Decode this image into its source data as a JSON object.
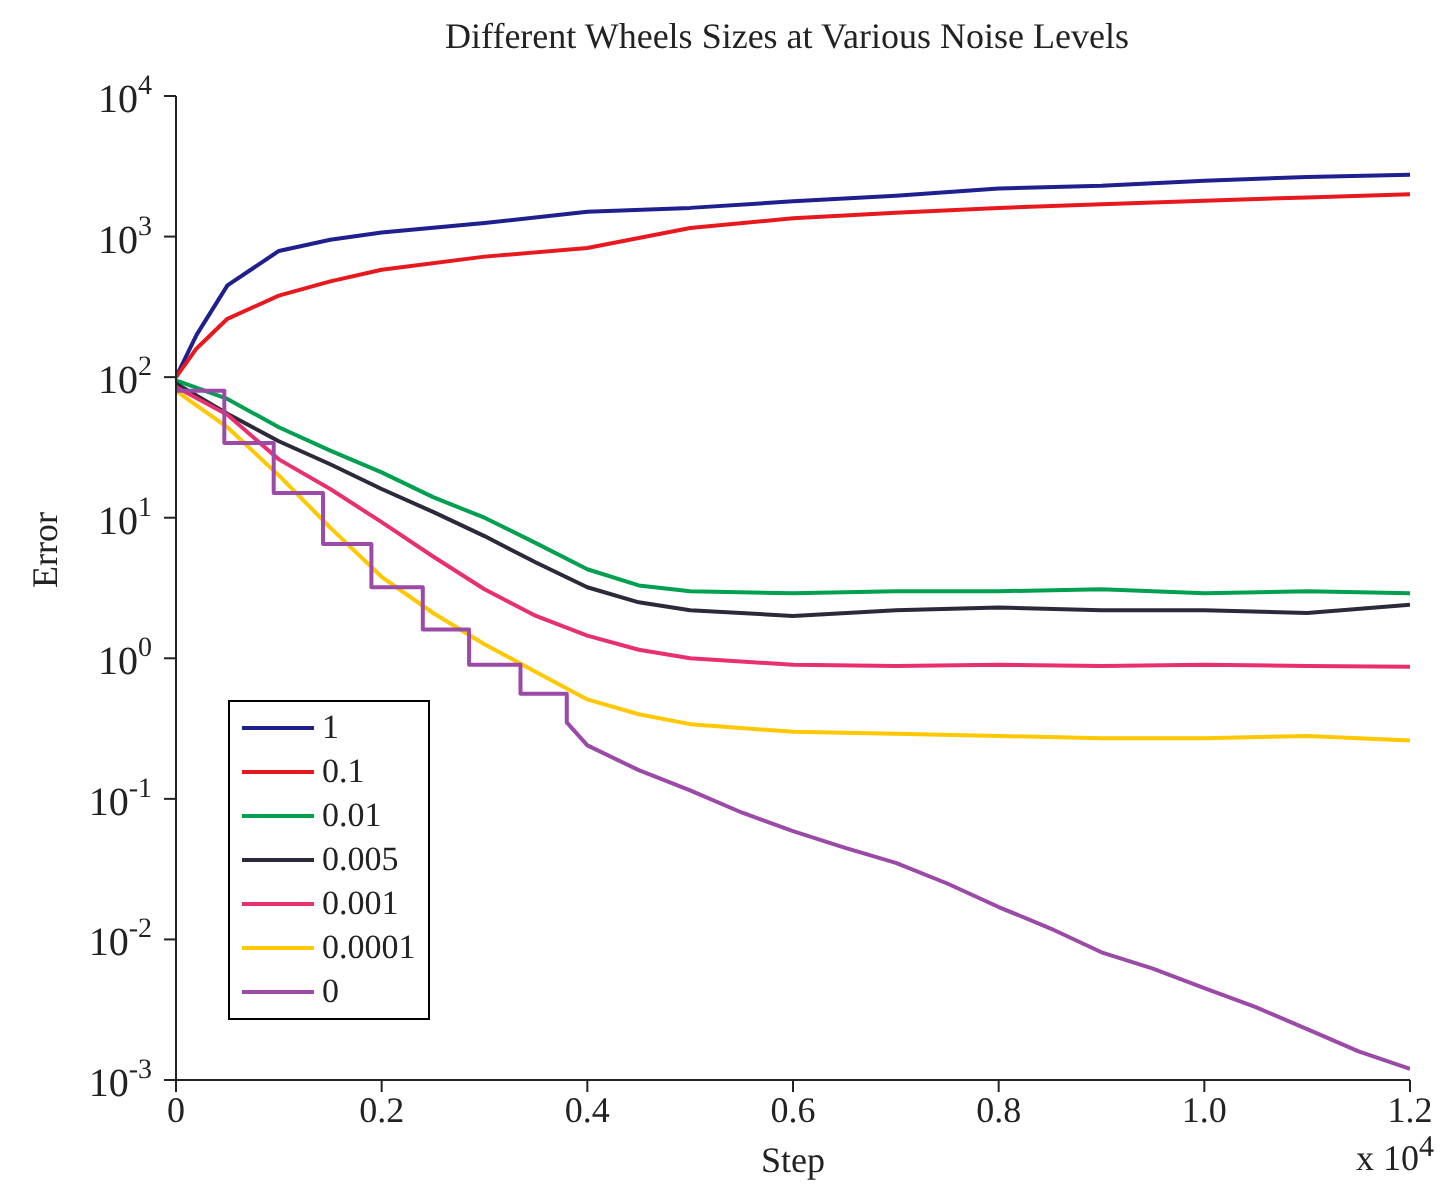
{
  "chart_data": {
    "type": "line",
    "title": "Different Wheels Sizes at Various Noise Levels",
    "xlabel": "Step",
    "ylabel": "Error",
    "annotations": [
      "x 10$^{4}$"
    ],
    "log": "y",
    "grid": false,
    "legend": "bottom left",
    "line_style": "solid",
    "marker": "none",
    "xlim": [
      0,
      1.2
    ],
    "xticks": [
      0,
      0.2,
      0.4,
      0.6,
      0.8,
      {
        "value": 1,
        "label": "1.0"
      },
      1.2
    ],
    "ylim": [
      0.001,
      10000
    ],
    "yticks": [
      {
        "value": 0.001,
        "label": "10$^{-3}$"
      },
      {
        "value": 0.01,
        "label": "10$^{-2}$"
      },
      {
        "value": 0.1,
        "label": "10$^{-1}$"
      },
      {
        "value": 1,
        "label": "10$^{0}$"
      },
      {
        "value": 10,
        "label": "10$^{1}$"
      },
      {
        "value": 100,
        "label": "10$^{2}$"
      },
      {
        "value": 1000,
        "label": "10$^{3}$"
      },
      {
        "value": 10000,
        "label": "10$^{4}$"
      }
    ],
    "series": [
      {
        "name": "1",
        "color": "#1f1f8f",
        "x": [
          0,
          0.02,
          0.05,
          0.1,
          0.15,
          0.2,
          0.3,
          0.4,
          0.5,
          0.6,
          0.7,
          0.8,
          0.9,
          1.0,
          1.1,
          1.2
        ],
        "values": [
          100,
          200,
          450,
          790,
          950,
          1070,
          1250,
          1500,
          1600,
          1780,
          1950,
          2200,
          2300,
          2500,
          2650,
          2750
        ]
      },
      {
        "name": "0.1",
        "color": "#e8191e",
        "x": [
          0,
          0.02,
          0.05,
          0.1,
          0.15,
          0.2,
          0.3,
          0.4,
          0.5,
          0.6,
          0.7,
          0.8,
          0.9,
          1.0,
          1.1,
          1.2
        ],
        "values": [
          100,
          160,
          260,
          380,
          480,
          580,
          720,
          830,
          1150,
          1350,
          1480,
          1600,
          1700,
          1800,
          1900,
          2000
        ]
      },
      {
        "name": "0.01",
        "color": "#00a050",
        "x": [
          0,
          0.05,
          0.1,
          0.15,
          0.2,
          0.25,
          0.3,
          0.35,
          0.4,
          0.45,
          0.5,
          0.6,
          0.7,
          0.8,
          0.9,
          1.0,
          1.1,
          1.2
        ],
        "values": [
          95,
          70,
          44,
          30,
          21,
          14,
          10,
          6.6,
          4.3,
          3.3,
          3.0,
          2.9,
          3.0,
          3.0,
          3.1,
          2.9,
          3.0,
          2.9
        ]
      },
      {
        "name": "0.005",
        "color": "#2a2a3a",
        "x": [
          0,
          0.05,
          0.1,
          0.15,
          0.2,
          0.25,
          0.3,
          0.35,
          0.4,
          0.45,
          0.5,
          0.6,
          0.7,
          0.8,
          0.9,
          1.0,
          1.1,
          1.2
        ],
        "values": [
          90,
          55,
          35,
          24,
          16,
          11,
          7.4,
          4.8,
          3.2,
          2.5,
          2.2,
          2.0,
          2.2,
          2.3,
          2.2,
          2.2,
          2.1,
          2.4
        ]
      },
      {
        "name": "0.001",
        "color": "#e8306e",
        "x": [
          0,
          0.05,
          0.1,
          0.15,
          0.2,
          0.25,
          0.3,
          0.35,
          0.4,
          0.45,
          0.5,
          0.6,
          0.7,
          0.8,
          0.9,
          1.0,
          1.1,
          1.2
        ],
        "values": [
          85,
          54,
          26,
          16,
          9.3,
          5.3,
          3.1,
          2.0,
          1.45,
          1.15,
          1.0,
          0.9,
          0.88,
          0.9,
          0.88,
          0.9,
          0.88,
          0.87
        ]
      },
      {
        "name": "0.0001",
        "color": "#ffc800",
        "x": [
          0,
          0.05,
          0.1,
          0.15,
          0.2,
          0.25,
          0.3,
          0.35,
          0.4,
          0.45,
          0.5,
          0.6,
          0.7,
          0.8,
          0.9,
          1.0,
          1.1,
          1.2
        ],
        "values": [
          80,
          44,
          20,
          8.5,
          3.8,
          2.1,
          1.26,
          0.8,
          0.51,
          0.4,
          0.34,
          0.3,
          0.29,
          0.28,
          0.27,
          0.27,
          0.28,
          0.26
        ]
      },
      {
        "name": "0",
        "color": "#9b4aa8",
        "x": [
          0,
          0.047,
          0.047,
          0.095,
          0.095,
          0.143,
          0.143,
          0.19,
          0.19,
          0.24,
          0.24,
          0.285,
          0.285,
          0.335,
          0.335,
          0.38,
          0.38,
          0.4,
          0.45,
          0.5,
          0.55,
          0.6,
          0.65,
          0.7,
          0.75,
          0.8,
          0.85,
          0.9,
          0.95,
          1.0,
          1.05,
          1.1,
          1.15,
          1.2
        ],
        "values": [
          80,
          80,
          34,
          34,
          15,
          15,
          6.5,
          6.5,
          3.2,
          3.2,
          1.6,
          1.6,
          0.9,
          0.9,
          0.56,
          0.56,
          0.35,
          0.24,
          0.16,
          0.115,
          0.08,
          0.059,
          0.045,
          0.035,
          0.025,
          0.017,
          0.012,
          0.0081,
          0.0062,
          0.0045,
          0.0033,
          0.0023,
          0.0016,
          0.0012
        ]
      }
    ]
  }
}
